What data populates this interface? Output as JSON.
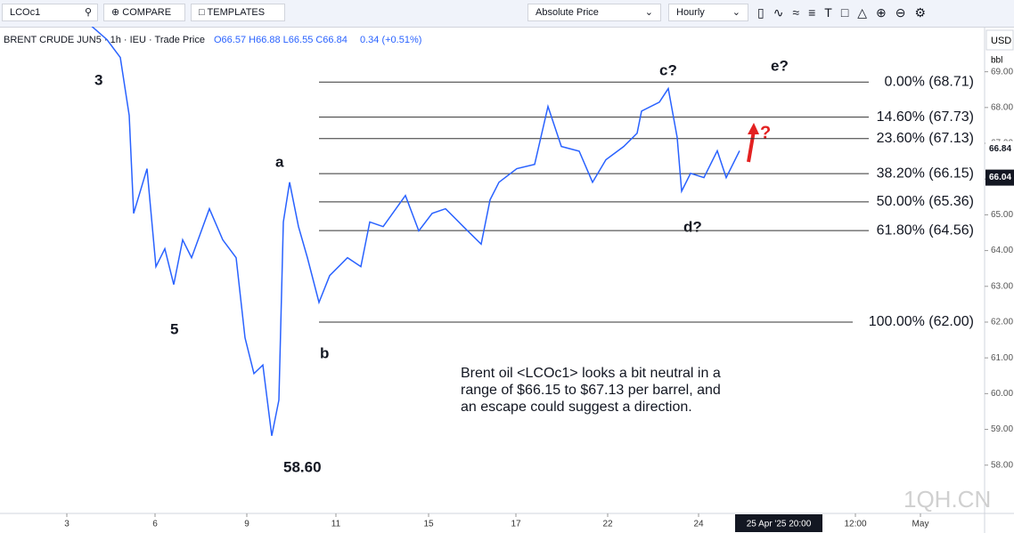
{
  "toolbar": {
    "symbol": "LCOc1",
    "compare": "COMPARE",
    "templates": "TEMPLATES",
    "price_mode": "Absolute Price",
    "interval": "Hourly"
  },
  "legend": {
    "name": "BRENT CRUDE JUN5 · 1h · IEU · Trade Price",
    "ohlc": "O66.57 H66.88 L66.55 C66.84",
    "change": "0.34 (+0.51%)"
  },
  "axis_header": {
    "currency": "USD",
    "unit": "bbl"
  },
  "watermark": "1QH.CN",
  "note": [
    "Brent oil <LCOc1> looks a bit neutral in a",
    "range of $66.15 to $67.13 per barrel, and",
    "an escape could suggest a direction."
  ],
  "waves": {
    "w3": "3",
    "w5": "5",
    "a": "a",
    "b": "b",
    "low": "58.60",
    "c": "c?",
    "d": "d?",
    "e": "e?",
    "q": "?"
  },
  "chart_data": {
    "type": "line",
    "x": [
      10.3,
      12,
      13.5,
      14.5,
      15,
      16.5,
      17.5,
      18.5,
      19.5,
      20.5,
      21.5,
      23.5,
      25,
      26.5,
      27.5,
      28.5,
      29.5,
      30.5,
      31.3,
      31.8,
      32.5,
      33.5,
      34.5,
      35.8,
      37,
      39,
      40.5,
      41.5,
      43,
      45.5,
      47,
      48.5,
      50,
      52,
      54,
      55,
      56,
      58,
      60,
      61.5,
      63,
      65,
      66.5,
      68,
      70,
      71.5,
      72,
      74,
      75,
      76,
      76.5,
      77.5,
      79,
      80.5,
      81.5,
      83
    ],
    "series": [
      {
        "name": "BRENT CRUDE JUN5",
        "color": "#2962ff",
        "values": [
          70.27,
          69.9,
          69.4,
          67.78,
          65.04,
          66.29,
          63.55,
          64.05,
          63.05,
          64.3,
          63.8,
          65.17,
          64.3,
          63.8,
          61.56,
          60.56,
          60.8,
          58.82,
          59.82,
          64.8,
          65.91,
          64.67,
          63.8,
          62.55,
          63.3,
          63.8,
          63.55,
          64.8,
          64.67,
          65.54,
          64.55,
          65.04,
          65.17,
          64.67,
          64.18,
          65.42,
          65.91,
          66.29,
          66.41,
          68.03,
          66.91,
          66.78,
          65.91,
          66.54,
          66.91,
          67.28,
          67.9,
          68.15,
          68.53,
          67.16,
          65.66,
          66.16,
          66.04,
          66.79,
          66.04,
          66.79
        ]
      }
    ],
    "xlim": [
      0,
      110.5
    ],
    "xticks": [
      {
        "value": 7.5,
        "label": "3"
      },
      {
        "value": 17.4,
        "label": "6"
      },
      {
        "value": 27.7,
        "label": "9"
      },
      {
        "value": 37.7,
        "label": "11"
      },
      {
        "value": 48.1,
        "label": "15"
      },
      {
        "value": 57.9,
        "label": "17"
      },
      {
        "value": 68.2,
        "label": "22"
      },
      {
        "value": 78.4,
        "label": "24"
      },
      {
        "value": 96,
        "label": "12:00"
      },
      {
        "value": 103.3,
        "label": "May"
      }
    ],
    "cursor_date": {
      "value": 87.4,
      "label": "25 Apr '25  20:00"
    },
    "ylim": [
      70.26,
      56.65
    ],
    "yticks": [
      {
        "value": 69,
        "label": "69.00"
      },
      {
        "value": 68,
        "label": "68.00"
      },
      {
        "value": 67,
        "label": "67.00"
      },
      {
        "value": 66,
        "label": "66.00"
      },
      {
        "value": 65,
        "label": "65.00"
      },
      {
        "value": 64,
        "label": "64.00"
      },
      {
        "value": 63,
        "label": "63.00"
      },
      {
        "value": 62,
        "label": "62.00"
      },
      {
        "value": 61,
        "label": "61.00"
      },
      {
        "value": 60,
        "label": "60.00"
      },
      {
        "value": 59,
        "label": "59.00"
      },
      {
        "value": 58,
        "label": "58.00"
      }
    ],
    "price_tags": [
      {
        "value": 66.84,
        "label": "66.84"
      },
      {
        "value": 66.04,
        "label": "66.04"
      }
    ],
    "fib_levels": [
      {
        "value": 68.71,
        "label": "0.00% (68.71)"
      },
      {
        "value": 67.73,
        "label": "14.60% (67.73)"
      },
      {
        "value": 67.13,
        "label": "23.60% (67.13)"
      },
      {
        "value": 66.15,
        "label": "38.20% (66.15)"
      },
      {
        "value": 65.36,
        "label": "50.00% (65.36)"
      },
      {
        "value": 64.56,
        "label": "61.80% (64.56)"
      },
      {
        "value": 62,
        "label": "100.00% (62.00)"
      }
    ]
  }
}
